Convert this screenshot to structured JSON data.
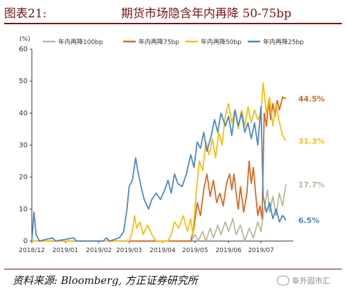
{
  "header": {
    "fig_label": "图表21:",
    "title": "期货市场隐含年内再降 50-75bp"
  },
  "footer": {
    "source": "资料来源: Bloomberg, 方正证券研究所",
    "watermark": "阜外固市汇"
  },
  "chart_data": {
    "type": "line",
    "yunit": "(%)",
    "ylim": [
      0,
      60
    ],
    "yticks": [
      0,
      10,
      20,
      30,
      40,
      50,
      60
    ],
    "xlim": [
      "2018-12-01",
      "2019-07-31"
    ],
    "xticks": [
      "2018/12",
      "2019/01",
      "2019/02",
      "2019/03",
      "2019/04",
      "2019/05",
      "2019/06",
      "2019/07"
    ],
    "xtick_dates": [
      "2018-12-01",
      "2019-01-01",
      "2019-02-01",
      "2019-03-01",
      "2019-04-01",
      "2019-05-01",
      "2019-06-01",
      "2019-07-01"
    ],
    "legend_position": "top",
    "grid": false,
    "series": [
      {
        "name": "年内再降100bp",
        "color": "#b9b79b",
        "end_label": "17.7%",
        "points": [
          [
            "2018-12-01",
            0
          ],
          [
            "2019-04-27",
            0
          ],
          [
            "2019-05-01",
            2
          ],
          [
            "2019-05-04",
            0
          ],
          [
            "2019-05-08",
            3
          ],
          [
            "2019-05-11",
            0
          ],
          [
            "2019-05-15",
            4
          ],
          [
            "2019-05-18",
            1
          ],
          [
            "2019-05-22",
            5
          ],
          [
            "2019-05-25",
            2
          ],
          [
            "2019-05-29",
            6
          ],
          [
            "2019-06-01",
            3
          ],
          [
            "2019-06-05",
            7
          ],
          [
            "2019-06-08",
            2
          ],
          [
            "2019-06-12",
            5
          ],
          [
            "2019-06-16",
            0
          ],
          [
            "2019-06-20",
            4
          ],
          [
            "2019-06-24",
            1
          ],
          [
            "2019-06-28",
            6
          ],
          [
            "2019-07-01",
            3
          ],
          [
            "2019-07-04",
            10
          ],
          [
            "2019-07-07",
            16
          ],
          [
            "2019-07-09",
            9
          ],
          [
            "2019-07-12",
            14
          ],
          [
            "2019-07-15",
            8
          ],
          [
            "2019-07-18",
            15
          ],
          [
            "2019-07-21",
            11
          ],
          [
            "2019-07-24",
            17.7
          ]
        ]
      },
      {
        "name": "年内再降75bp",
        "color": "#d9661f",
        "end_label": "44.5%",
        "points": [
          [
            "2018-12-01",
            0
          ],
          [
            "2019-04-27",
            0
          ],
          [
            "2019-04-30",
            4
          ],
          [
            "2019-05-03",
            12
          ],
          [
            "2019-05-06",
            8
          ],
          [
            "2019-05-09",
            16
          ],
          [
            "2019-05-12",
            21
          ],
          [
            "2019-05-15",
            14
          ],
          [
            "2019-05-18",
            19
          ],
          [
            "2019-05-21",
            12
          ],
          [
            "2019-05-24",
            15
          ],
          [
            "2019-05-27",
            11
          ],
          [
            "2019-05-30",
            18
          ],
          [
            "2019-06-02",
            21
          ],
          [
            "2019-06-04",
            16
          ],
          [
            "2019-06-06",
            21
          ],
          [
            "2019-06-08",
            15
          ],
          [
            "2019-06-10",
            10
          ],
          [
            "2019-06-12",
            17
          ],
          [
            "2019-06-15",
            9
          ],
          [
            "2019-06-18",
            15
          ],
          [
            "2019-06-20",
            25
          ],
          [
            "2019-06-22",
            18
          ],
          [
            "2019-06-24",
            23
          ],
          [
            "2019-06-26",
            15
          ],
          [
            "2019-06-28",
            8
          ],
          [
            "2019-06-30",
            11
          ],
          [
            "2019-07-02",
            7
          ],
          [
            "2019-07-04",
            40
          ],
          [
            "2019-07-06",
            36
          ],
          [
            "2019-07-08",
            44
          ],
          [
            "2019-07-10",
            38
          ],
          [
            "2019-07-12",
            43
          ],
          [
            "2019-07-14",
            39
          ],
          [
            "2019-07-16",
            44
          ],
          [
            "2019-07-18",
            41
          ],
          [
            "2019-07-21",
            45
          ],
          [
            "2019-07-24",
            44.5
          ]
        ]
      },
      {
        "name": "年内再降50bp",
        "color": "#f2c010",
        "end_label": "31.3%",
        "points": [
          [
            "2018-12-01",
            0
          ],
          [
            "2019-03-01",
            0
          ],
          [
            "2019-03-04",
            3
          ],
          [
            "2019-03-06",
            8
          ],
          [
            "2019-03-08",
            4
          ],
          [
            "2019-03-11",
            6
          ],
          [
            "2019-03-14",
            2
          ],
          [
            "2019-03-18",
            5
          ],
          [
            "2019-03-22",
            2
          ],
          [
            "2019-03-26",
            0
          ],
          [
            "2019-04-06",
            0
          ],
          [
            "2019-04-09",
            2
          ],
          [
            "2019-04-12",
            6
          ],
          [
            "2019-04-16",
            4
          ],
          [
            "2019-04-20",
            8
          ],
          [
            "2019-04-24",
            3
          ],
          [
            "2019-04-27",
            7
          ],
          [
            "2019-04-29",
            2
          ],
          [
            "2019-05-02",
            15
          ],
          [
            "2019-05-05",
            25
          ],
          [
            "2019-05-08",
            22
          ],
          [
            "2019-05-11",
            31
          ],
          [
            "2019-05-14",
            27
          ],
          [
            "2019-05-17",
            32
          ],
          [
            "2019-05-20",
            26
          ],
          [
            "2019-05-23",
            34
          ],
          [
            "2019-05-26",
            30
          ],
          [
            "2019-05-29",
            39
          ],
          [
            "2019-06-01",
            43
          ],
          [
            "2019-06-04",
            37
          ],
          [
            "2019-06-07",
            41
          ],
          [
            "2019-06-10",
            35
          ],
          [
            "2019-06-13",
            41
          ],
          [
            "2019-06-16",
            36
          ],
          [
            "2019-06-19",
            42
          ],
          [
            "2019-06-22",
            37
          ],
          [
            "2019-06-25",
            41
          ],
          [
            "2019-06-28",
            38
          ],
          [
            "2019-07-01",
            40
          ],
          [
            "2019-07-03",
            49.5
          ],
          [
            "2019-07-06",
            40
          ],
          [
            "2019-07-09",
            45
          ],
          [
            "2019-07-12",
            36
          ],
          [
            "2019-07-15",
            43
          ],
          [
            "2019-07-18",
            37
          ],
          [
            "2019-07-21",
            33
          ],
          [
            "2019-07-24",
            31.3
          ]
        ]
      },
      {
        "name": "年内再降25bp",
        "color": "#4a86c5",
        "end_label": "6.5%",
        "points": [
          [
            "2018-12-01",
            0
          ],
          [
            "2018-12-03",
            9
          ],
          [
            "2018-12-05",
            2
          ],
          [
            "2018-12-08",
            0
          ],
          [
            "2018-12-20",
            1
          ],
          [
            "2018-12-23",
            0
          ],
          [
            "2019-01-09",
            1
          ],
          [
            "2019-01-11",
            0
          ],
          [
            "2019-02-05",
            0
          ],
          [
            "2019-02-08",
            1
          ],
          [
            "2019-02-11",
            0
          ],
          [
            "2019-02-20",
            1
          ],
          [
            "2019-02-24",
            3
          ],
          [
            "2019-02-27",
            10
          ],
          [
            "2019-03-01",
            17
          ],
          [
            "2019-03-04",
            19
          ],
          [
            "2019-03-07",
            26
          ],
          [
            "2019-03-09",
            22
          ],
          [
            "2019-03-12",
            17
          ],
          [
            "2019-03-15",
            13
          ],
          [
            "2019-03-19",
            10
          ],
          [
            "2019-03-22",
            13
          ],
          [
            "2019-03-26",
            15
          ],
          [
            "2019-03-30",
            13
          ],
          [
            "2019-04-03",
            16
          ],
          [
            "2019-04-06",
            19
          ],
          [
            "2019-04-09",
            15
          ],
          [
            "2019-04-12",
            21
          ],
          [
            "2019-04-15",
            18
          ],
          [
            "2019-04-19",
            17
          ],
          [
            "2019-04-23",
            21
          ],
          [
            "2019-04-27",
            27
          ],
          [
            "2019-04-30",
            23
          ],
          [
            "2019-05-03",
            31
          ],
          [
            "2019-05-06",
            29
          ],
          [
            "2019-05-09",
            34
          ],
          [
            "2019-05-12",
            28
          ],
          [
            "2019-05-16",
            33
          ],
          [
            "2019-05-19",
            38
          ],
          [
            "2019-05-22",
            34
          ],
          [
            "2019-05-25",
            40
          ],
          [
            "2019-05-29",
            36
          ],
          [
            "2019-06-01",
            39
          ],
          [
            "2019-06-04",
            33
          ],
          [
            "2019-06-07",
            41
          ],
          [
            "2019-06-10",
            36
          ],
          [
            "2019-06-13",
            40
          ],
          [
            "2019-06-16",
            34
          ],
          [
            "2019-06-19",
            37
          ],
          [
            "2019-06-22",
            32
          ],
          [
            "2019-06-25",
            37
          ],
          [
            "2019-06-28",
            30
          ],
          [
            "2019-07-01",
            42
          ],
          [
            "2019-07-03",
            14
          ],
          [
            "2019-07-06",
            9
          ],
          [
            "2019-07-09",
            12
          ],
          [
            "2019-07-12",
            7
          ],
          [
            "2019-07-15",
            10
          ],
          [
            "2019-07-18",
            6
          ],
          [
            "2019-07-21",
            8
          ],
          [
            "2019-07-24",
            6.5
          ]
        ]
      }
    ]
  }
}
